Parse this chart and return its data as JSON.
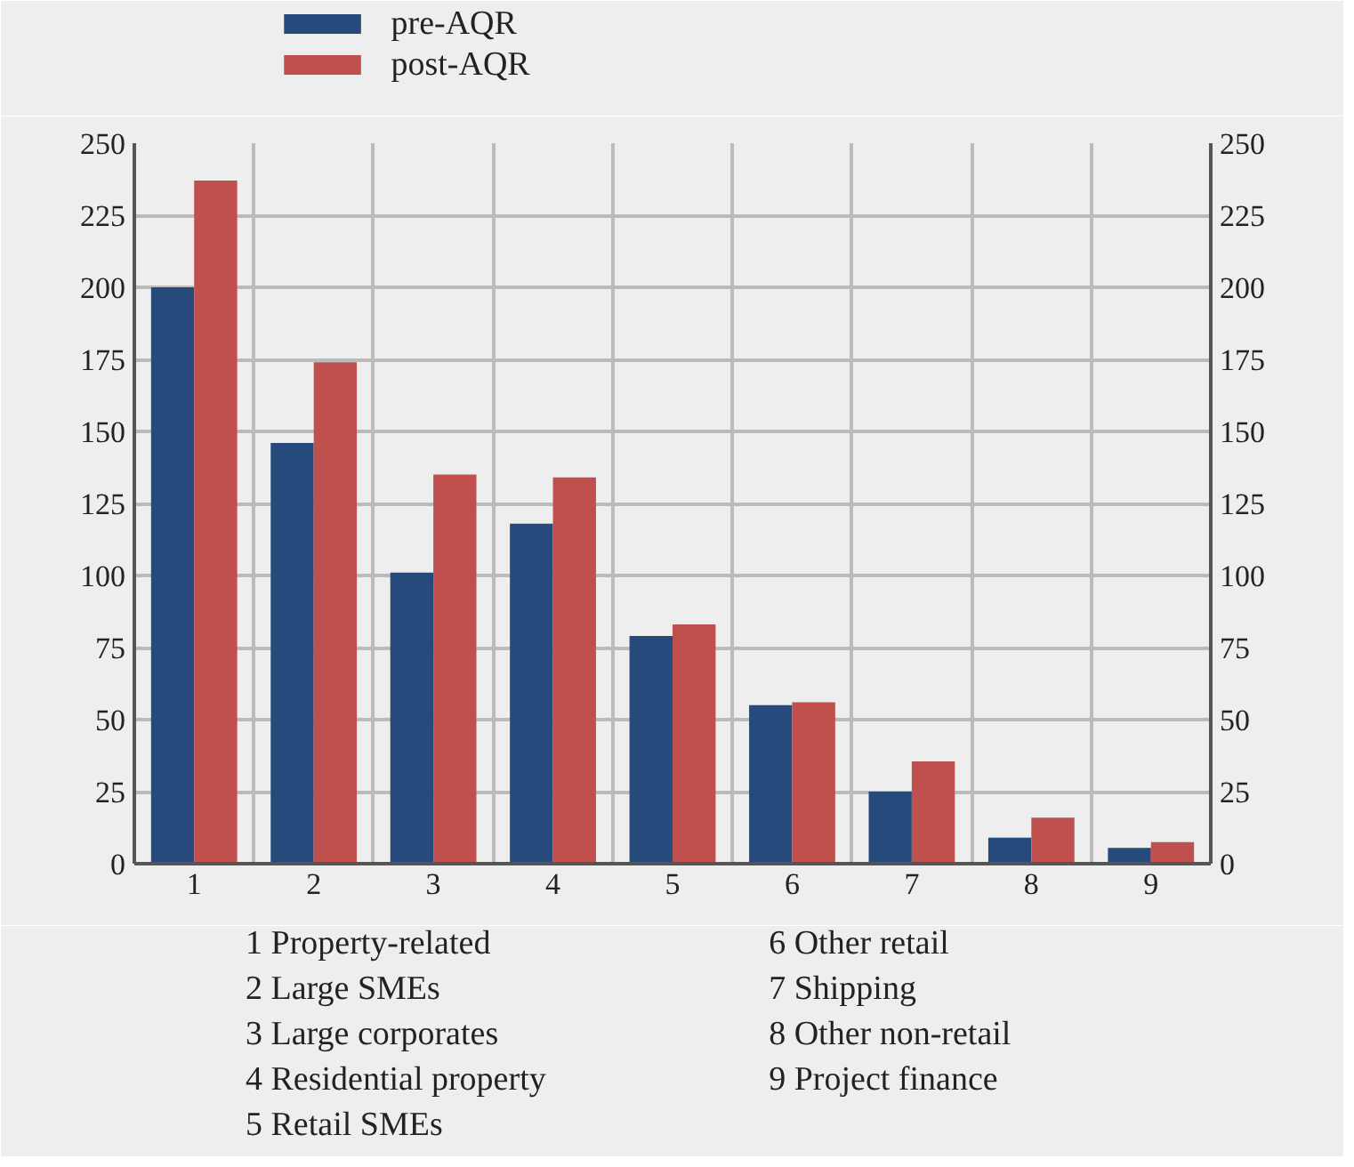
{
  "chart_data": {
    "type": "bar",
    "categories": [
      "1",
      "2",
      "3",
      "4",
      "5",
      "6",
      "7",
      "8",
      "9"
    ],
    "series": [
      {
        "name": "pre-AQR",
        "color": "#264a7c",
        "values": [
          200,
          146,
          101,
          118,
          79,
          55,
          25,
          9,
          5.5
        ]
      },
      {
        "name": "post-AQR",
        "color": "#c0504d",
        "values": [
          237,
          174,
          135,
          134,
          83,
          56,
          35.5,
          16,
          7.5
        ]
      }
    ],
    "ylim": [
      0,
      250
    ],
    "yticks": [
      0,
      25,
      50,
      75,
      100,
      125,
      150,
      175,
      200,
      225,
      250
    ],
    "y2lim": [
      0,
      250
    ],
    "y2ticks": [
      0,
      25,
      50,
      75,
      100,
      125,
      150,
      175,
      200,
      225,
      250
    ],
    "grid": true,
    "legend": "top left",
    "annotations": [
      "1 Property-related",
      "2 Large SMEs",
      "3 Large corporates",
      "4 Residential property",
      "5 Retail SMEs",
      "6 Other retail",
      "7 Shipping",
      "8 Other non-retail",
      "9 Project finance"
    ]
  }
}
